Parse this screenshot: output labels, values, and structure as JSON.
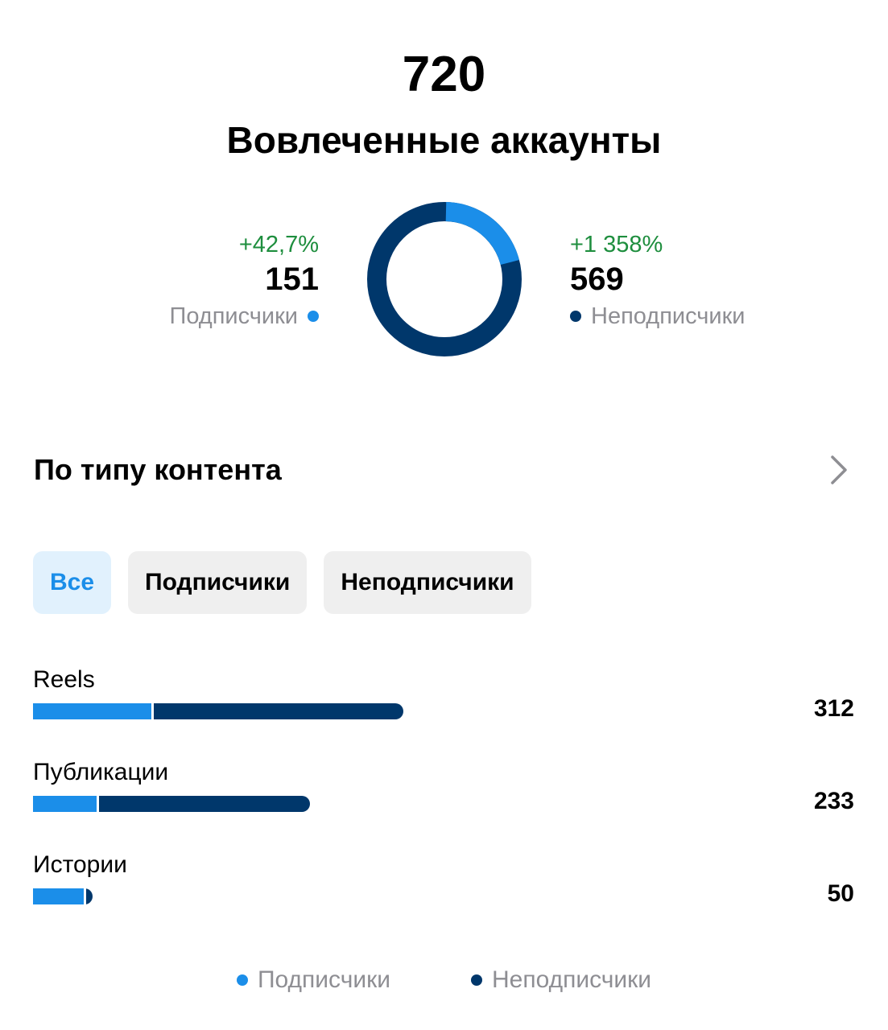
{
  "header": {
    "total": "720",
    "title": "Вовлеченные аккаунты"
  },
  "colors": {
    "followers": "#1b8ee9",
    "non_followers": "#00376b",
    "positive_change": "#1e8e3e",
    "muted_text": "#8e8e93"
  },
  "summary": {
    "followers": {
      "change": "+42,7%",
      "count": "151",
      "label": "Подписчики"
    },
    "non_followers": {
      "change": "+1 358%",
      "count": "569",
      "label": "Неподписчики"
    }
  },
  "donut": {
    "followers_value": 151,
    "non_followers_value": 569
  },
  "content_type": {
    "title": "По типу контента",
    "chevron_icon": "chevron-right-icon"
  },
  "filters": [
    {
      "label": "Все",
      "active": true
    },
    {
      "label": "Подписчики",
      "active": false
    },
    {
      "label": "Неподписчики",
      "active": false
    }
  ],
  "rows": [
    {
      "label": "Reels",
      "value": "312",
      "total": 312,
      "followers_fraction": 0.32
    },
    {
      "label": "Публикации",
      "value": "233",
      "total": 233,
      "followers_fraction": 0.23
    },
    {
      "label": "Истории",
      "value": "50",
      "total": 50,
      "followers_fraction": 0.86
    }
  ],
  "legend": {
    "followers": "Подписчики",
    "non_followers": "Неподписчики"
  }
}
